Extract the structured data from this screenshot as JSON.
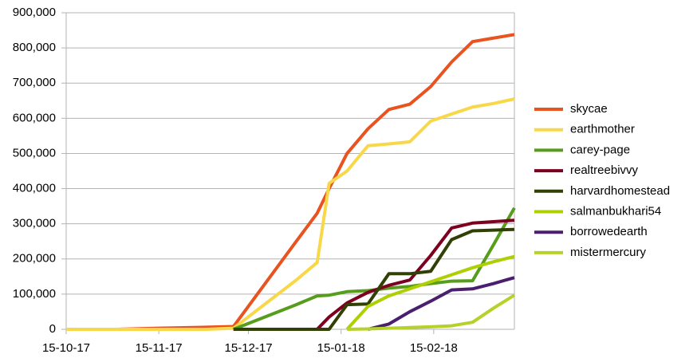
{
  "chart_data": {
    "type": "line",
    "x": [
      "15-10-17",
      "01-11-17",
      "15-11-17",
      "01-12-17",
      "10-12-17",
      "31-12-17",
      "07-01-18",
      "11-01-18",
      "17-01-18",
      "24-01-18",
      "31-01-18",
      "07-02-18",
      "14-02-18",
      "21-02-18",
      "28-02-18",
      "07-03-18",
      "14-03-18"
    ],
    "series": [
      {
        "name": "skycae",
        "color": "#e8531f",
        "values": [
          0,
          0,
          3000,
          6000,
          8000,
          250000,
          330000,
          400000,
          500000,
          570000,
          625000,
          640000,
          690000,
          760000,
          818000,
          828000,
          838000
        ]
      },
      {
        "name": "earthmother",
        "color": "#f8d849",
        "values": [
          0,
          0,
          0,
          0,
          3000,
          140000,
          190000,
          415000,
          450000,
          522000,
          527000,
          533000,
          592000,
          612000,
          632000,
          642000,
          655000
        ]
      },
      {
        "name": "carey-page",
        "color": "#579d1c",
        "values": [
          null,
          null,
          null,
          null,
          0,
          70000,
          95000,
          97000,
          107000,
          110000,
          117000,
          122000,
          130000,
          137000,
          138000,
          240000,
          345000
        ]
      },
      {
        "name": "realtreebivvy",
        "color": "#7e0021",
        "values": [
          null,
          null,
          null,
          null,
          0,
          0,
          0,
          35000,
          75000,
          105000,
          125000,
          140000,
          210000,
          288000,
          302000,
          306000,
          310000
        ]
      },
      {
        "name": "harvardhomestead",
        "color": "#314004",
        "values": [
          null,
          null,
          null,
          null,
          0,
          0,
          0,
          0,
          70000,
          72000,
          158000,
          158000,
          165000,
          255000,
          280000,
          282000,
          284000
        ]
      },
      {
        "name": "salmanbukhari54",
        "color": "#aecf00",
        "values": [
          null,
          null,
          null,
          null,
          null,
          null,
          null,
          null,
          0,
          65000,
          95000,
          115000,
          135000,
          155000,
          175000,
          192000,
          207000
        ]
      },
      {
        "name": "borrowedearth",
        "color": "#4b1f6f",
        "values": [
          null,
          null,
          null,
          null,
          null,
          null,
          null,
          null,
          null,
          0,
          15000,
          50000,
          80000,
          112000,
          115000,
          130000,
          147000
        ]
      },
      {
        "name": "mistermercury",
        "color": "#b4d22a",
        "values": [
          null,
          null,
          null,
          null,
          null,
          null,
          null,
          null,
          0,
          1000,
          3000,
          5000,
          7000,
          10000,
          20000,
          60000,
          97000
        ]
      }
    ],
    "xlim": [
      "15-10-17",
      "14-03-18"
    ],
    "xticks": [
      "15-10-17",
      "15-11-17",
      "15-12-17",
      "15-01-18",
      "15-02-18"
    ],
    "ylim": [
      0,
      900000
    ],
    "yticks": [
      0,
      {
        "value": 100000,
        "label": "100,000"
      },
      {
        "value": 200000,
        "label": "200,000"
      },
      {
        "value": 300000,
        "label": "300,000"
      },
      {
        "value": 400000,
        "label": "400,000"
      },
      {
        "value": 500000,
        "label": "500,000"
      },
      {
        "value": 600000,
        "label": "600,000"
      },
      {
        "value": 700000,
        "label": "700,000"
      },
      {
        "value": 800000,
        "label": "800,000"
      },
      {
        "value": 900000,
        "label": "900,000"
      }
    ],
    "grid": true,
    "legend": "right"
  }
}
